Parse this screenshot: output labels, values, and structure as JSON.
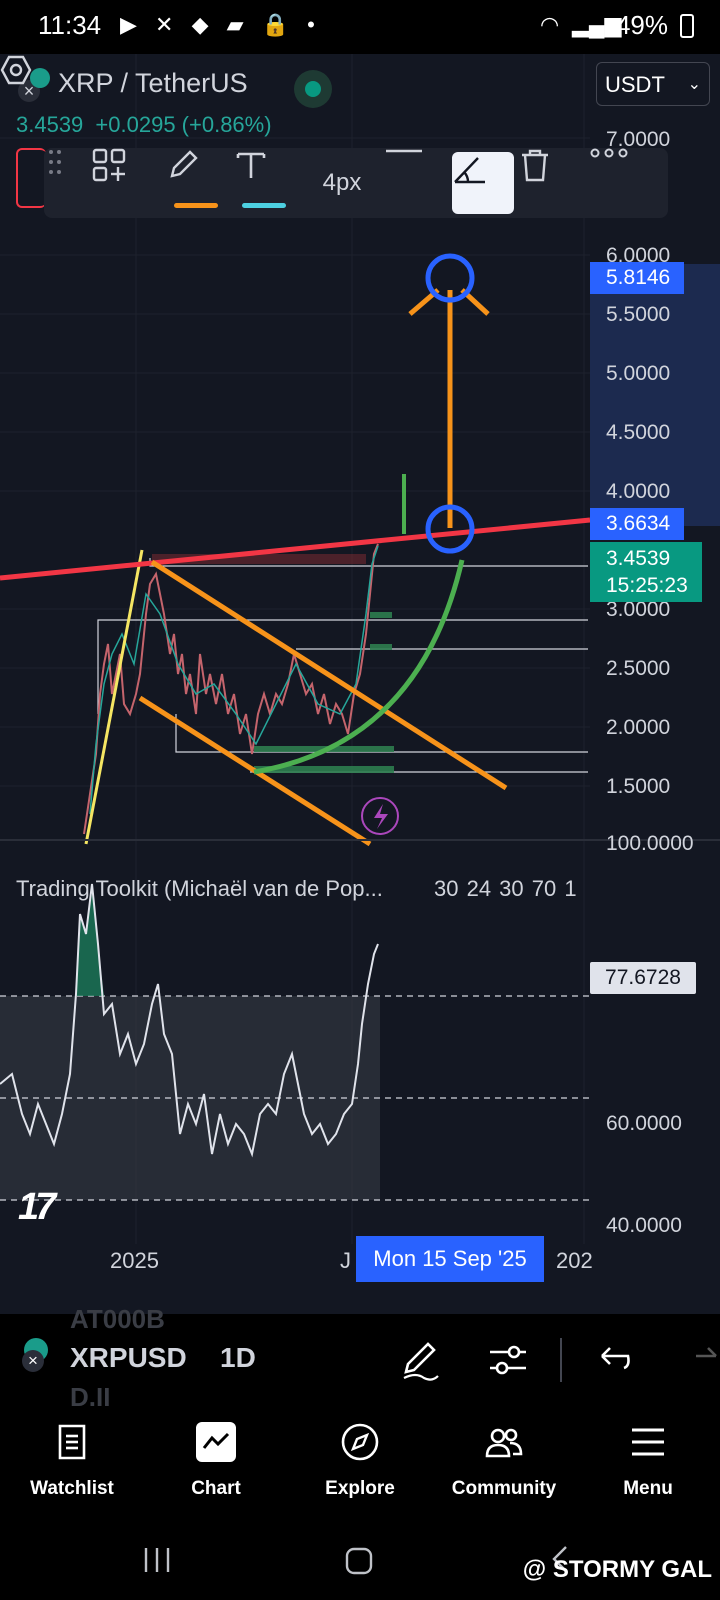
{
  "status_bar": {
    "time": "11:34",
    "battery": "49%",
    "icons": [
      "youtube-icon",
      "x-icon",
      "binance-icon",
      "stack-icon",
      "lock-icon",
      "dot-icon",
      "wifi-icon",
      "signal-icon",
      "battery-icon"
    ]
  },
  "header": {
    "symbol_title": "XRP / TetherUS",
    "last_price": "3.4539",
    "change": "+0.0295 (+0.86%)",
    "currency": "USDT"
  },
  "toolbar": {
    "thickness": "4px",
    "colors": {
      "pen": "#f7931a",
      "text": "#4dd0e1"
    },
    "items": [
      "drag-handle",
      "add-to-favorites",
      "pen-color",
      "text-color",
      "line-thickness",
      "line-style",
      "angle-tool",
      "delete",
      "more"
    ]
  },
  "price_scale": {
    "ticks": [
      "7.0000",
      "6.0000",
      "5.5000",
      "5.0000",
      "4.5000",
      "4.0000",
      "3.0000",
      "2.5000",
      "2.0000",
      "1.5000"
    ],
    "target_label": "5.8146",
    "line_label": "3.6634",
    "current_price": "3.4539",
    "countdown": "15:25:23"
  },
  "indicator": {
    "title": "Trading Toolkit (Michaël van de Pop...",
    "params": "30 24 30 70 1",
    "top_value": "100.0000",
    "ticks": [
      "60.0000",
      "40.0000"
    ],
    "current_value": "77.6728"
  },
  "time_axis": {
    "labels": [
      "2025",
      "J",
      "202"
    ],
    "crosshair_date": "Mon 15 Sep '25"
  },
  "symbol_bar": {
    "symbol": "XRPUSD",
    "interval": "1D",
    "ghost_top": "AT000B",
    "ghost_bottom": "D.II"
  },
  "nav": {
    "items": [
      {
        "label": "Watchlist",
        "icon": "watchlist-icon"
      },
      {
        "label": "Chart",
        "icon": "chart-icon"
      },
      {
        "label": "Explore",
        "icon": "compass-icon"
      },
      {
        "label": "Community",
        "icon": "community-icon"
      },
      {
        "label": "Menu",
        "icon": "menu-icon"
      }
    ]
  },
  "watermark": "@ STORMY GAL",
  "colors": {
    "background": "#131722",
    "accent_blue": "#2962ff",
    "green": "#089981",
    "red": "#f23645",
    "orange": "#f7931a",
    "resistance_line": "#f23645",
    "curve": "#4caf50"
  }
}
